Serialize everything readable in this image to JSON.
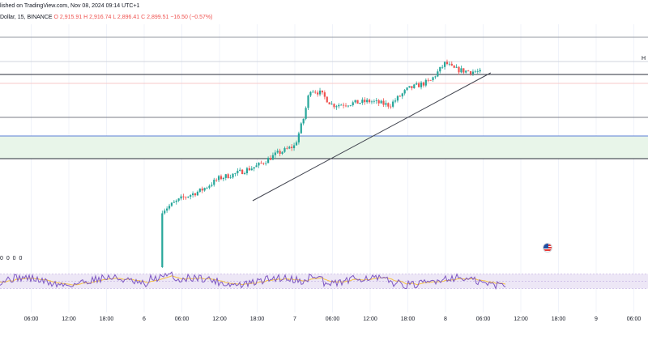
{
  "header": {
    "published": "lished on TradingView.com, Nov 08, 2024 09:14 UTC+1",
    "symbol": "Dollar, 15, BINANCE",
    "open": "O 2,915.91",
    "high": "H 2,916.74",
    "low": "L 2,896.41",
    "close": "C 2,899.51",
    "change": "−16.50 (−0.57%)"
  },
  "rsi_legend": "0 0 0 0",
  "price_tag": "H",
  "colors": {
    "up": "#26a69a",
    "down": "#ef5350",
    "rsi_line": "#7e57c2",
    "rsi_ma": "#f5c242",
    "rsi_band": "#ede7f6",
    "demand_zone": "#e8f5e9",
    "trendline": "#434651"
  },
  "chart_data": {
    "type": "candlestick",
    "timeframe": "15",
    "x_tick_labels": [
      "06:00",
      "12:00",
      "18:00",
      "6",
      "06:00",
      "12:00",
      "18:00",
      "7",
      "06:00",
      "12:00",
      "18:00",
      "8",
      "06:00",
      "12:00",
      "18:00",
      "9",
      "06:00"
    ],
    "price_path": [
      [
        0.0,
        2420
      ],
      [
        0.12,
        2560
      ],
      [
        0.25,
        2590
      ],
      [
        0.38,
        2610
      ],
      [
        0.5,
        2640
      ],
      [
        0.6,
        2650
      ],
      [
        0.75,
        2670
      ],
      [
        0.88,
        2700
      ],
      [
        1.0,
        2720
      ],
      [
        1.06,
        2790
      ],
      [
        1.1,
        2860
      ],
      [
        1.17,
        2850
      ],
      [
        1.25,
        2820
      ],
      [
        1.38,
        2825
      ],
      [
        1.5,
        2830
      ],
      [
        1.63,
        2820
      ],
      [
        1.75,
        2860
      ],
      [
        1.9,
        2880
      ],
      [
        2.0,
        2925
      ],
      [
        2.05,
        2910
      ],
      [
        2.12,
        2905
      ],
      [
        2.2,
        2903
      ],
      [
        2.24,
        2900
      ]
    ],
    "horizontal_levels": [
      2980,
      2950,
      2910,
      2898,
      2780,
      2740,
      2702
    ],
    "demand_zone": [
      2702,
      2740
    ],
    "trendline": {
      "start": [
        0.72,
        2660
      ],
      "end": [
        2.3,
        2912
      ]
    },
    "rsi": {
      "range": [
        0,
        100
      ],
      "band": [
        30,
        70
      ],
      "ma_color_ref": "rsi_ma"
    }
  }
}
